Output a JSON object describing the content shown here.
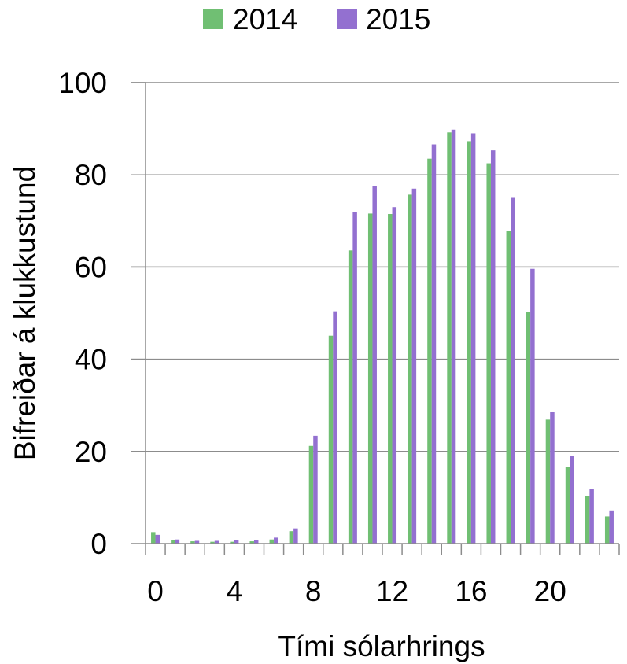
{
  "chart_data": {
    "type": "bar",
    "title": "",
    "xlabel": "Tími sólarhrings",
    "ylabel": "Bifreiðar á klukkustund",
    "ylim": [
      0,
      100
    ],
    "yticks": [
      "0",
      "20",
      "40",
      "60",
      "80",
      "100"
    ],
    "xtick_labels": [
      "0",
      "4",
      "8",
      "12",
      "16",
      "20"
    ],
    "xtick_values": [
      0,
      4,
      8,
      12,
      16,
      20
    ],
    "categories": [
      0,
      1,
      2,
      3,
      4,
      5,
      6,
      7,
      8,
      9,
      10,
      11,
      12,
      13,
      14,
      15,
      16,
      17,
      18,
      19,
      20,
      21,
      22,
      23
    ],
    "grid": true,
    "legend_position": "top",
    "series": [
      {
        "name": "2014",
        "color": "#70bf73",
        "values": [
          2.5,
          0.8,
          0.5,
          0.4,
          0.4,
          0.5,
          0.9,
          2.7,
          21.2,
          45.1,
          63.6,
          71.6,
          71.5,
          75.7,
          83.5,
          89.2,
          87.3,
          82.5,
          67.8,
          50.2,
          26.9,
          16.6,
          10.3,
          5.9
        ]
      },
      {
        "name": "2015",
        "color": "#9370d0",
        "values": [
          1.9,
          0.9,
          0.6,
          0.6,
          0.8,
          0.8,
          1.3,
          3.3,
          23.4,
          50.4,
          71.9,
          77.6,
          73.0,
          77.0,
          86.6,
          89.8,
          89.0,
          85.3,
          75.0,
          59.6,
          28.5,
          19.0,
          11.8,
          7.2
        ]
      }
    ]
  }
}
